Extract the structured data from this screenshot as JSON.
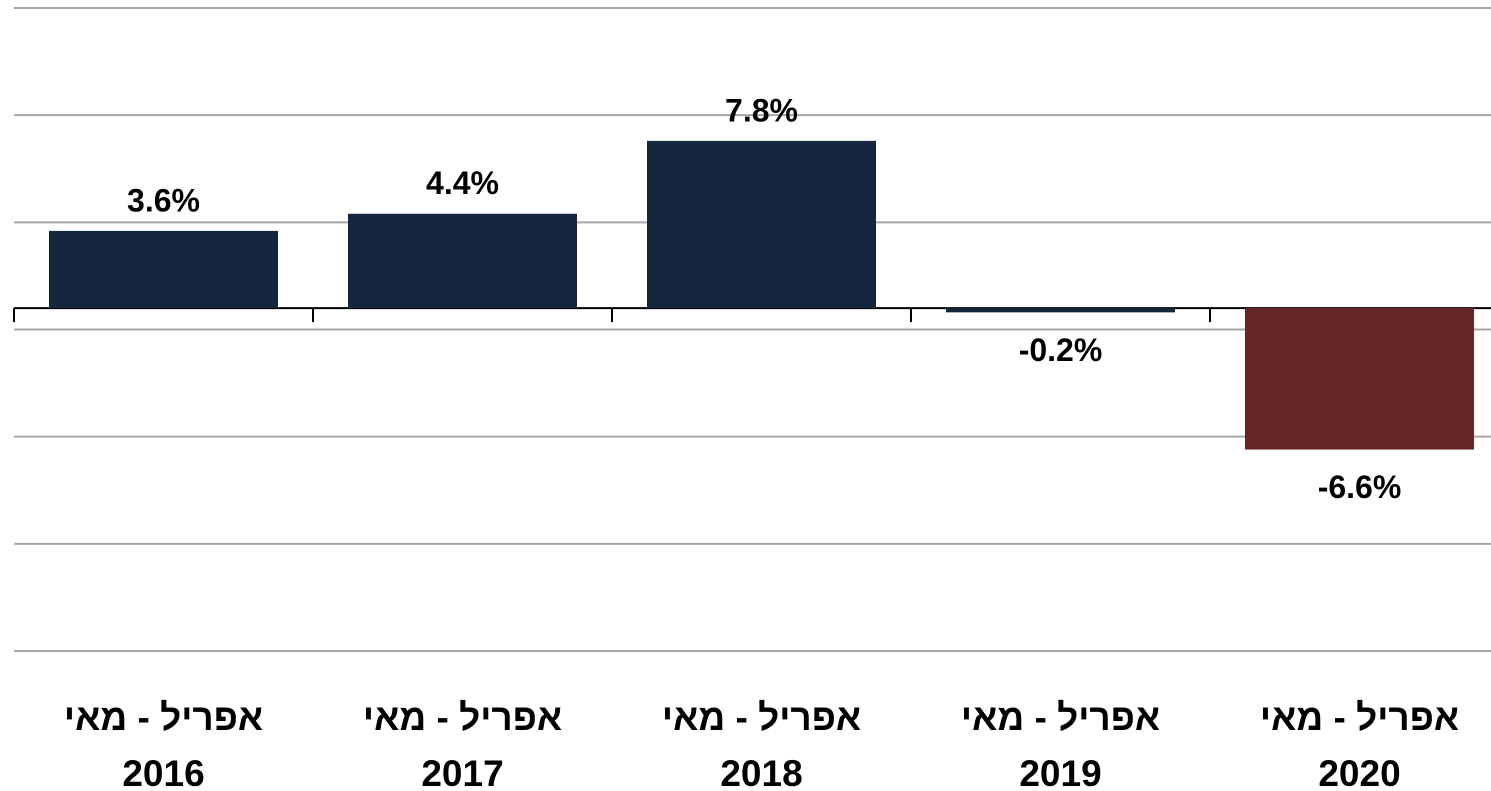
{
  "chart_data": {
    "type": "bar",
    "categories": [
      "אפריל - מאי\n2016",
      "אפריל - מאי\n2017",
      "אפריל - מאי\n2018",
      "אפריל - מאי\n2019",
      "אפריל - מאי\n2020"
    ],
    "values": [
      3.6,
      4.4,
      7.8,
      -0.2,
      -6.6
    ],
    "value_labels": [
      "3.6%",
      "4.4%",
      "7.8%",
      "-0.2%",
      "-6.6%"
    ],
    "colors": [
      "#14273f",
      "#14273f",
      "#14273f",
      "#14273f",
      "#652525"
    ],
    "ylim": [
      -16,
      14
    ],
    "yticks": [
      -16,
      -11,
      -6,
      -1,
      4,
      9,
      14
    ],
    "grid": true
  }
}
